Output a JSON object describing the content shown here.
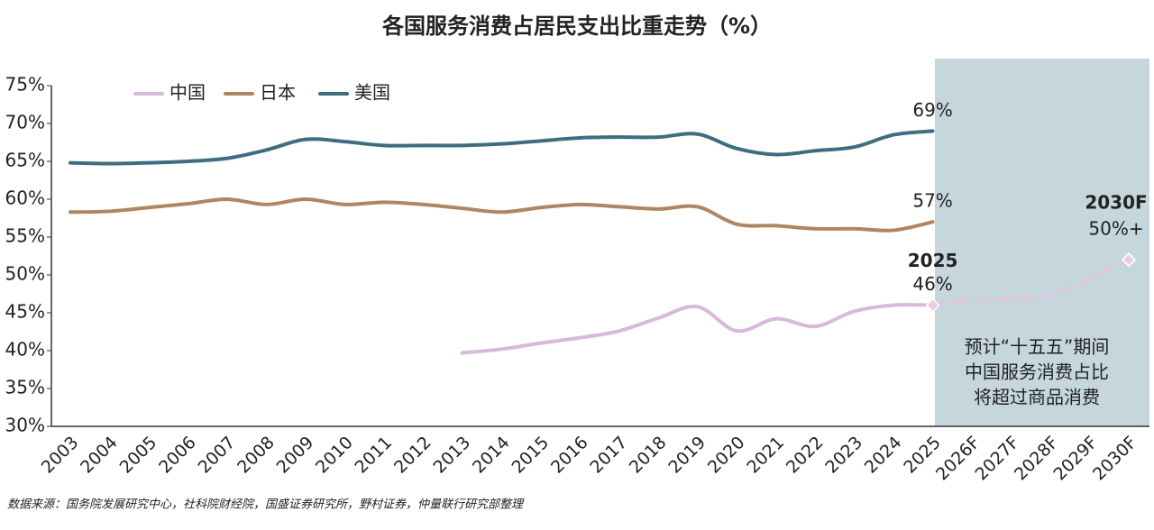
{
  "chart_data": {
    "type": "line",
    "title": "各国服务消费占居民支出比重走势（%）",
    "categories": [
      "2003",
      "2004",
      "2005",
      "2006",
      "2007",
      "2008",
      "2009",
      "2010",
      "2011",
      "2012",
      "2013",
      "2014",
      "2015",
      "2016",
      "2017",
      "2018",
      "2019",
      "2020",
      "2021",
      "2022",
      "2023",
      "2024",
      "2025",
      "2026F",
      "2027F",
      "2028F",
      "2029F",
      "2030F"
    ],
    "ylim": [
      30,
      75
    ],
    "yticks": [
      {
        "value": 30,
        "label": "30%"
      },
      {
        "value": 35,
        "label": "35%"
      },
      {
        "value": 40,
        "label": "40%"
      },
      {
        "value": 45,
        "label": "45%"
      },
      {
        "value": 50,
        "label": "50%"
      },
      {
        "value": 55,
        "label": "55%"
      },
      {
        "value": 60,
        "label": "60%"
      },
      {
        "value": 65,
        "label": "65%"
      },
      {
        "value": 70,
        "label": "70%"
      },
      {
        "value": 75,
        "label": "75%"
      }
    ],
    "legend": "upper left",
    "series": [
      {
        "name": "中国",
        "color": "#d8b9d9",
        "values": [
          null,
          null,
          null,
          null,
          null,
          null,
          null,
          null,
          null,
          null,
          39.7,
          40.2,
          41.0,
          41.7,
          42.6,
          44.3,
          45.8,
          42.6,
          44.2,
          43.2,
          45.2,
          46.0,
          46,
          null,
          null,
          null,
          null,
          null
        ],
        "value_labels": [
          null,
          null,
          null,
          null,
          null,
          null,
          null,
          null,
          null,
          null,
          null,
          null,
          null,
          null,
          null,
          null,
          null,
          null,
          null,
          null,
          null,
          null,
          "46%",
          null,
          null,
          null,
          null,
          null
        ]
      },
      {
        "name": "日本",
        "color": "#b08560",
        "values": [
          58.3,
          58.4,
          58.9,
          59.4,
          60.0,
          59.3,
          60.0,
          59.3,
          59.6,
          59.3,
          58.8,
          58.3,
          58.9,
          59.3,
          59.0,
          58.7,
          59.0,
          56.7,
          56.5,
          56.1,
          56.1,
          55.9,
          57,
          null,
          null,
          null,
          null,
          null
        ],
        "value_labels": [
          null,
          null,
          null,
          null,
          null,
          null,
          null,
          null,
          null,
          null,
          null,
          null,
          null,
          null,
          null,
          null,
          null,
          null,
          null,
          null,
          null,
          null,
          "57%",
          null,
          null,
          null,
          null,
          null
        ]
      },
      {
        "name": "美国",
        "color": "#3c6e80",
        "values": [
          64.8,
          64.7,
          64.8,
          65.0,
          65.4,
          66.5,
          67.9,
          67.6,
          67.1,
          67.1,
          67.1,
          67.3,
          67.7,
          68.1,
          68.2,
          68.2,
          68.6,
          66.7,
          65.9,
          66.4,
          66.9,
          68.5,
          69,
          null,
          null,
          null,
          null,
          null
        ],
        "value_labels": [
          null,
          null,
          null,
          null,
          null,
          null,
          null,
          null,
          null,
          null,
          null,
          null,
          null,
          null,
          null,
          null,
          null,
          null,
          null,
          null,
          null,
          null,
          "69%",
          null,
          null,
          null,
          null,
          null
        ]
      }
    ],
    "forecast": {
      "color": "#e0c4e0",
      "dashed": true,
      "values": [
        null,
        null,
        null,
        null,
        null,
        null,
        null,
        null,
        null,
        null,
        null,
        null,
        null,
        null,
        null,
        null,
        null,
        null,
        null,
        null,
        null,
        null,
        46,
        46.6,
        46.9,
        47.3,
        49.5,
        52
      ]
    },
    "annotations": {
      "year_2025": "2025",
      "year_2030": "2030F",
      "forecast_label": "50%+",
      "box_lines": [
        "预计“十五五”期间",
        "中国服务消费占比",
        "将超过商品消费"
      ]
    },
    "source": "数据来源：国务院发展研究中心，社科院财经院，国盛证券研究所，野村证券，仲量联行研究部整理"
  }
}
